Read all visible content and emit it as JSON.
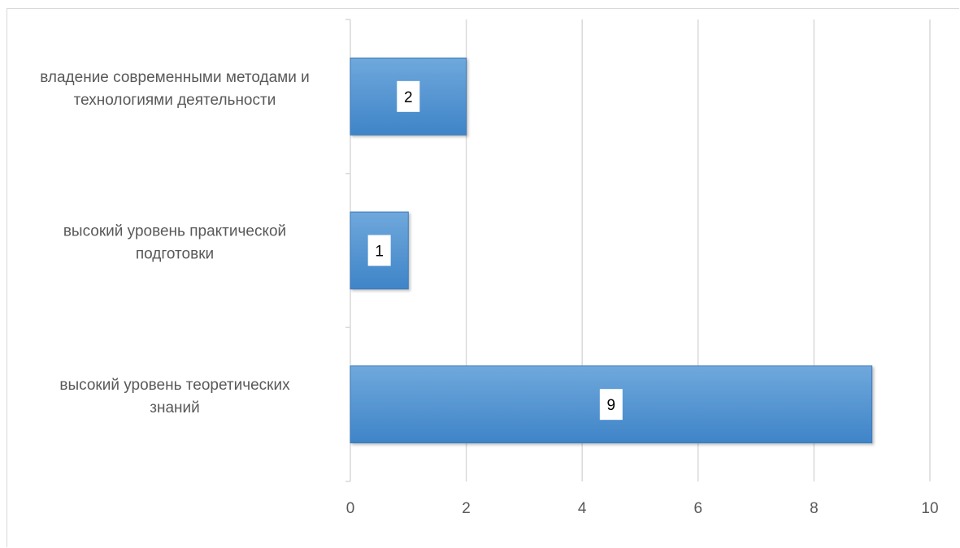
{
  "chart_data": {
    "type": "bar",
    "orientation": "horizontal",
    "categories": [
      [
        "высокий уровень теоретических",
        "знаний"
      ],
      [
        "высокий уровень практической",
        "подготовки"
      ],
      [
        "владение современными методами и",
        "технологиями деятельности"
      ]
    ],
    "values": [
      9,
      1,
      2
    ],
    "data_labels": [
      "9",
      "1",
      "2"
    ],
    "xlim": [
      0,
      10
    ],
    "x_ticks": [
      0,
      2,
      4,
      6,
      8,
      10
    ],
    "title": "",
    "xlabel": "",
    "ylabel": "",
    "grid": "vertical",
    "legend": "none",
    "colors": {
      "bar_top": "#6fa8dc",
      "bar_bottom": "#3f84c8",
      "bar_edge": "#3a78b8",
      "grid": "#d9d9d9",
      "axis": "#d9d9d9",
      "text": "#595959"
    }
  }
}
